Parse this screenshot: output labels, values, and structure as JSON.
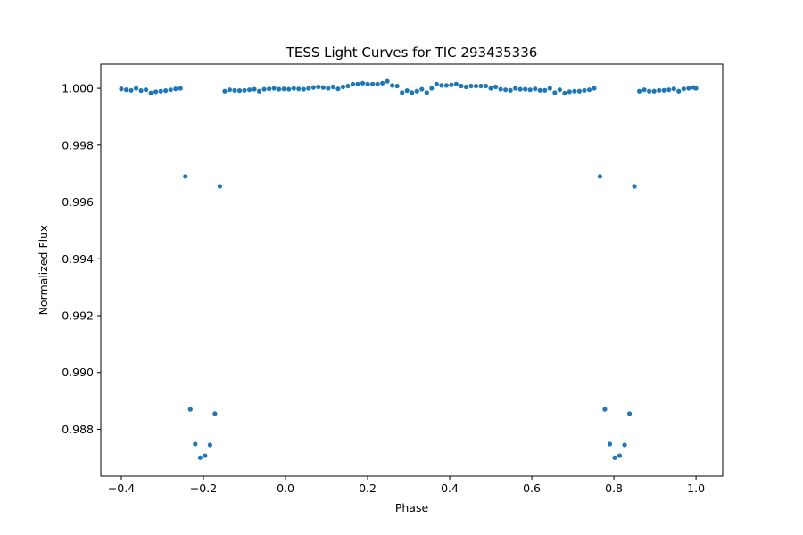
{
  "chart_data": {
    "type": "scatter",
    "title": "TESS Light Curves for TIC 293435336",
    "xlabel": "Phase",
    "ylabel": "Normalized Flux",
    "xlim": [
      -0.45,
      1.065
    ],
    "ylim": [
      0.98635,
      1.00085
    ],
    "xticks": [
      -0.4,
      -0.2,
      0.0,
      0.2,
      0.4,
      0.6,
      0.8,
      1.0
    ],
    "xtick_labels": [
      "−0.4",
      "−0.2",
      "0.0",
      "0.2",
      "0.4",
      "0.6",
      "0.8",
      "1.0"
    ],
    "yticks": [
      0.988,
      0.99,
      0.992,
      0.994,
      0.996,
      0.998,
      1.0
    ],
    "ytick_labels": [
      "0.988",
      "0.990",
      "0.992",
      "0.994",
      "0.996",
      "0.998",
      "1.000"
    ],
    "grid": false,
    "marker_color": "#1f77b4",
    "series": [
      {
        "points": [
          [
            -0.4,
            0.99998
          ],
          [
            -0.388,
            0.99995
          ],
          [
            -0.376,
            0.99993
          ],
          [
            -0.364,
            1.0
          ],
          [
            -0.352,
            0.99992
          ],
          [
            -0.34,
            0.99995
          ],
          [
            -0.328,
            0.99984
          ],
          [
            -0.316,
            0.99988
          ],
          [
            -0.304,
            0.9999
          ],
          [
            -0.292,
            0.99992
          ],
          [
            -0.28,
            0.99995
          ],
          [
            -0.268,
            0.99998
          ],
          [
            -0.256,
            1.0
          ],
          [
            -0.244,
            0.9969
          ],
          [
            -0.232,
            0.9887
          ],
          [
            -0.22,
            0.98748
          ],
          [
            -0.208,
            0.987
          ],
          [
            -0.196,
            0.98707
          ],
          [
            -0.184,
            0.98745
          ],
          [
            -0.172,
            0.98855
          ],
          [
            -0.16,
            0.99655
          ],
          [
            -0.148,
            0.9999
          ],
          [
            -0.136,
            0.99995
          ],
          [
            -0.124,
            0.99993
          ],
          [
            -0.112,
            0.99992
          ],
          [
            -0.1,
            0.99993
          ],
          [
            -0.088,
            0.99995
          ],
          [
            -0.076,
            0.99997
          ],
          [
            -0.064,
            0.9999
          ],
          [
            -0.052,
            0.99997
          ],
          [
            -0.04,
            0.99998
          ],
          [
            -0.028,
            1.0
          ],
          [
            -0.016,
            0.99997
          ],
          [
            -0.004,
            0.99998
          ],
          [
            0.008,
            0.99997
          ],
          [
            0.02,
            1.0
          ],
          [
            0.032,
            0.99998
          ],
          [
            0.044,
            0.99997
          ],
          [
            0.056,
            1.0
          ],
          [
            0.068,
            1.00003
          ],
          [
            0.08,
            1.00005
          ],
          [
            0.092,
            1.00003
          ],
          [
            0.104,
            1.0
          ],
          [
            0.116,
            1.00005
          ],
          [
            0.128,
            0.99998
          ],
          [
            0.14,
            1.00005
          ],
          [
            0.152,
            1.00008
          ],
          [
            0.164,
            1.00015
          ],
          [
            0.176,
            1.00015
          ],
          [
            0.188,
            1.00018
          ],
          [
            0.2,
            1.00015
          ],
          [
            0.212,
            1.00015
          ],
          [
            0.224,
            1.00015
          ],
          [
            0.236,
            1.00018
          ],
          [
            0.248,
            1.00025
          ],
          [
            0.26,
            1.0001
          ],
          [
            0.272,
            1.00008
          ],
          [
            0.284,
            0.99985
          ],
          [
            0.296,
            0.99992
          ],
          [
            0.308,
            0.99985
          ],
          [
            0.32,
            0.9999
          ],
          [
            0.332,
            0.99997
          ],
          [
            0.344,
            0.99985
          ],
          [
            0.356,
            1.0
          ],
          [
            0.368,
            1.00015
          ],
          [
            0.38,
            1.0001
          ],
          [
            0.392,
            1.0001
          ],
          [
            0.404,
            1.00012
          ],
          [
            0.416,
            1.00015
          ],
          [
            0.428,
            1.00008
          ],
          [
            0.44,
            1.00005
          ],
          [
            0.452,
            1.00008
          ],
          [
            0.464,
            1.00008
          ],
          [
            0.476,
            1.00008
          ],
          [
            0.488,
            1.00008
          ],
          [
            0.5,
            1.0
          ],
          [
            0.512,
            1.00005
          ],
          [
            0.524,
            0.99997
          ],
          [
            0.536,
            0.99995
          ],
          [
            0.548,
            0.99993
          ],
          [
            0.56,
            1.0
          ],
          [
            0.572,
            0.99997
          ],
          [
            0.584,
            0.99997
          ],
          [
            0.596,
            0.99995
          ],
          [
            0.608,
            0.99998
          ],
          [
            0.62,
            0.99993
          ],
          [
            0.632,
            0.99993
          ],
          [
            0.644,
            1.0
          ],
          [
            0.656,
            0.99985
          ],
          [
            0.668,
            0.99995
          ],
          [
            0.68,
            0.99983
          ],
          [
            0.692,
            0.99988
          ],
          [
            0.704,
            0.9999
          ],
          [
            0.716,
            0.9999
          ],
          [
            0.728,
            0.99993
          ],
          [
            0.74,
            0.99995
          ],
          [
            0.752,
            1.0
          ],
          [
            0.766,
            0.9969
          ],
          [
            0.778,
            0.9887
          ],
          [
            0.79,
            0.98748
          ],
          [
            0.802,
            0.987
          ],
          [
            0.814,
            0.98707
          ],
          [
            0.826,
            0.98745
          ],
          [
            0.838,
            0.98855
          ],
          [
            0.85,
            0.99655
          ],
          [
            0.862,
            0.9999
          ],
          [
            0.874,
            0.99995
          ],
          [
            0.886,
            0.9999
          ],
          [
            0.898,
            0.9999
          ],
          [
            0.91,
            0.99993
          ],
          [
            0.922,
            0.99993
          ],
          [
            0.934,
            0.99995
          ],
          [
            0.946,
            0.99998
          ],
          [
            0.958,
            0.9999
          ],
          [
            0.97,
            0.99998
          ],
          [
            0.982,
            1.0
          ],
          [
            0.994,
            1.00003
          ],
          [
            1.0,
            1.0
          ]
        ]
      }
    ]
  }
}
